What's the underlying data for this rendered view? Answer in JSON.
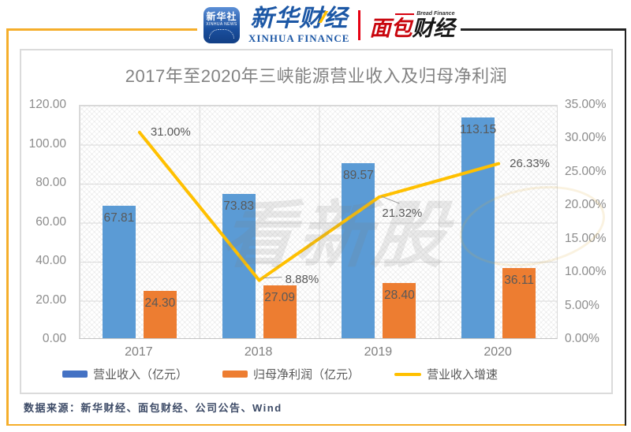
{
  "header": {
    "xinhua_app": {
      "cn": "新华社",
      "en": "XINHUA NEWS"
    },
    "xinhua_finance": {
      "cn": "新华财经",
      "en": "XINHUA FINANCE"
    },
    "bread_finance": {
      "en": "Bread Finance",
      "cn_left": "面包",
      "cn_right": "财经"
    }
  },
  "chart_data": {
    "type": "bar+line",
    "title": "2017年至2020年三峡能源营业收入及归母净利润",
    "categories": [
      "2017",
      "2018",
      "2019",
      "2020"
    ],
    "series": [
      {
        "name": "营业收入（亿元）",
        "type": "bar",
        "axis": "left",
        "color": "#5B9BD5",
        "legend_color": "#4472C4",
        "values": [
          67.81,
          73.83,
          89.57,
          113.15
        ],
        "labels": [
          "67.81",
          "73.83",
          "89.57",
          "113.15"
        ]
      },
      {
        "name": "归母净利润（亿元）",
        "type": "bar",
        "axis": "left",
        "color": "#ED7D31",
        "legend_color": "#ED7D31",
        "values": [
          24.3,
          27.09,
          28.4,
          36.11
        ],
        "labels": [
          "24.30",
          "27.09",
          "28.40",
          "36.11"
        ]
      },
      {
        "name": "营业收入增速",
        "type": "line",
        "axis": "right",
        "color": "#FFC000",
        "legend_color": "#FFC000",
        "values": [
          31.0,
          8.88,
          21.32,
          26.33
        ],
        "labels": [
          "31.00%",
          "8.88%",
          "21.32%",
          "26.33%"
        ]
      }
    ],
    "left_axis": {
      "min": 0,
      "max": 120,
      "step": 20,
      "labels": [
        "120.00",
        "100.00",
        "80.00",
        "60.00",
        "40.00",
        "20.00",
        "0.00"
      ]
    },
    "right_axis": {
      "min": 0,
      "max": 35,
      "step": 5,
      "labels": [
        "35.00%",
        "30.00%",
        "25.00%",
        "20.00%",
        "15.00%",
        "10.00%",
        "5.00%",
        "0.00%"
      ]
    },
    "grid": true,
    "legend_position": "bottom"
  },
  "watermark": {
    "text": "看新股"
  },
  "footer": {
    "source": "数据来源：新华财经、面包财经、公司公告、Wind"
  }
}
